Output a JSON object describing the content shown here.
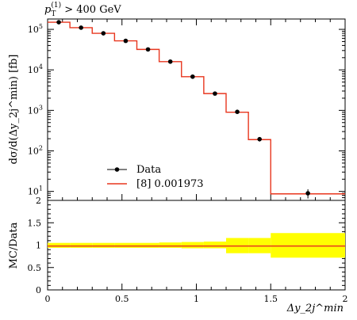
{
  "header": {
    "cut_var": "p",
    "cut_sub": "T",
    "cut_sup": "(1)",
    "cut_rest": " > 400 GeV"
  },
  "chart_data": [
    {
      "type": "line",
      "panel": "main",
      "ylabel": "dσ/d(Δy_2j^min) [fb]",
      "yscale": "log",
      "ylim": [
        6,
        180000
      ],
      "xlim": [
        0,
        2
      ],
      "y_tick_labels": [
        {
          "exp": "5",
          "v": 100000
        },
        {
          "exp": "4",
          "v": 10000
        },
        {
          "exp": "3",
          "v": 1000
        },
        {
          "exp": "2",
          "v": 100
        },
        {
          "exp": "1",
          "v": 10
        }
      ],
      "legend": {
        "position": "lower-left",
        "data_label": "Data",
        "mc_label": "[8] 0.001973"
      },
      "bins": [
        0,
        0.15,
        0.3,
        0.45,
        0.6,
        0.75,
        0.9,
        1.05,
        1.2,
        1.35,
        1.5,
        2.0
      ],
      "mc_values": [
        150000,
        110000,
        80000,
        52000,
        32000,
        16000,
        6800,
        2600,
        900,
        190,
        8.7
      ],
      "data": {
        "x": [
          0.075,
          0.225,
          0.375,
          0.525,
          0.675,
          0.825,
          0.975,
          1.125,
          1.275,
          1.425,
          1.75
        ],
        "y": [
          150000,
          110000,
          80000,
          52000,
          32000,
          16000,
          6800,
          2600,
          920,
          195,
          9.0
        ],
        "yerr": [
          5000,
          3800,
          2800,
          1800,
          1100,
          600,
          300,
          150,
          80,
          25,
          2.3
        ]
      },
      "colors": {
        "mc": "#e8361e",
        "data": "#000000"
      }
    },
    {
      "type": "line",
      "panel": "ratio",
      "ylabel": "MC/Data",
      "xlabel": "Δy_2j^min",
      "xlim": [
        0,
        2
      ],
      "ylim": [
        0,
        2
      ],
      "x_tick_labels": [
        "0",
        "0.5",
        "1",
        "1.5",
        "2"
      ],
      "y_tick_labels": [
        "0",
        "0.5",
        "1",
        "1.5",
        "2"
      ],
      "bins": [
        0,
        0.15,
        0.3,
        0.45,
        0.6,
        0.75,
        0.9,
        1.05,
        1.2,
        1.35,
        1.5,
        2.0
      ],
      "ratio": [
        0.98,
        0.98,
        0.98,
        0.98,
        0.98,
        0.98,
        0.98,
        0.98,
        0.98,
        0.98,
        0.98
      ],
      "band_low": [
        0.94,
        0.94,
        0.94,
        0.94,
        0.94,
        0.94,
        0.93,
        0.93,
        0.82,
        0.82,
        0.72
      ],
      "band_high": [
        1.05,
        1.05,
        1.05,
        1.05,
        1.05,
        1.06,
        1.07,
        1.08,
        1.16,
        1.16,
        1.27
      ],
      "colors": {
        "band": "#ffff00",
        "mc": "#e8361e"
      }
    }
  ]
}
